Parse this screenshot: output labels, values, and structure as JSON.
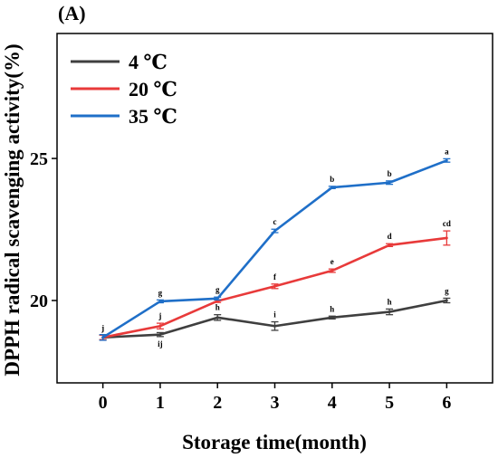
{
  "panel_label": "(A)",
  "chart_data": {
    "type": "line",
    "title": "",
    "xlabel": "Storage time(month)",
    "ylabel": "DPPH radical scavenging activity(%)",
    "x": [
      0,
      1,
      2,
      3,
      4,
      5,
      6
    ],
    "xlim": [
      -0.8,
      6.8
    ],
    "ylim": [
      17.1,
      29.4
    ],
    "x_ticks": [
      "0",
      "1",
      "2",
      "3",
      "4",
      "5",
      "6"
    ],
    "y_ticks": [
      {
        "value": 20,
        "label": "20"
      },
      {
        "value": 25,
        "label": "25"
      }
    ],
    "grid": false,
    "legend_position": "top-left",
    "series": [
      {
        "name": "4 ℃",
        "color": "#3f3f3f",
        "values": [
          18.7,
          18.8,
          19.4,
          19.1,
          19.4,
          19.6,
          20.0
        ],
        "errors": [
          0.08,
          0.07,
          0.1,
          0.15,
          0.05,
          0.1,
          0.08
        ],
        "letters": [
          "j",
          "ij",
          "h",
          "i",
          "h",
          "h",
          "g"
        ],
        "letter_side": [
          "above",
          "below",
          "above",
          "above",
          "above",
          "above",
          "above"
        ]
      },
      {
        "name": "20 ℃",
        "color": "#e83a3a",
        "values": [
          18.7,
          19.1,
          19.98,
          20.5,
          21.05,
          21.95,
          22.2
        ],
        "errors": [
          0.08,
          0.1,
          0.05,
          0.08,
          0.06,
          0.05,
          0.25
        ],
        "letters": [
          "",
          "j",
          "",
          "f",
          "e",
          "d",
          "cd"
        ],
        "letter_side": [
          "above",
          "above",
          "above",
          "above",
          "above",
          "above",
          "above"
        ]
      },
      {
        "name": "35 ℃",
        "color": "#1f6fc8",
        "values": [
          18.7,
          19.97,
          20.07,
          22.45,
          23.98,
          24.15,
          24.93
        ],
        "errors": [
          0.1,
          0.05,
          0.05,
          0.06,
          0.04,
          0.06,
          0.06
        ],
        "letters": [
          "",
          "g",
          "g",
          "c",
          "b",
          "b",
          "a"
        ],
        "letter_side": [
          "above",
          "above",
          "above",
          "above",
          "above",
          "above",
          "above"
        ]
      }
    ]
  }
}
